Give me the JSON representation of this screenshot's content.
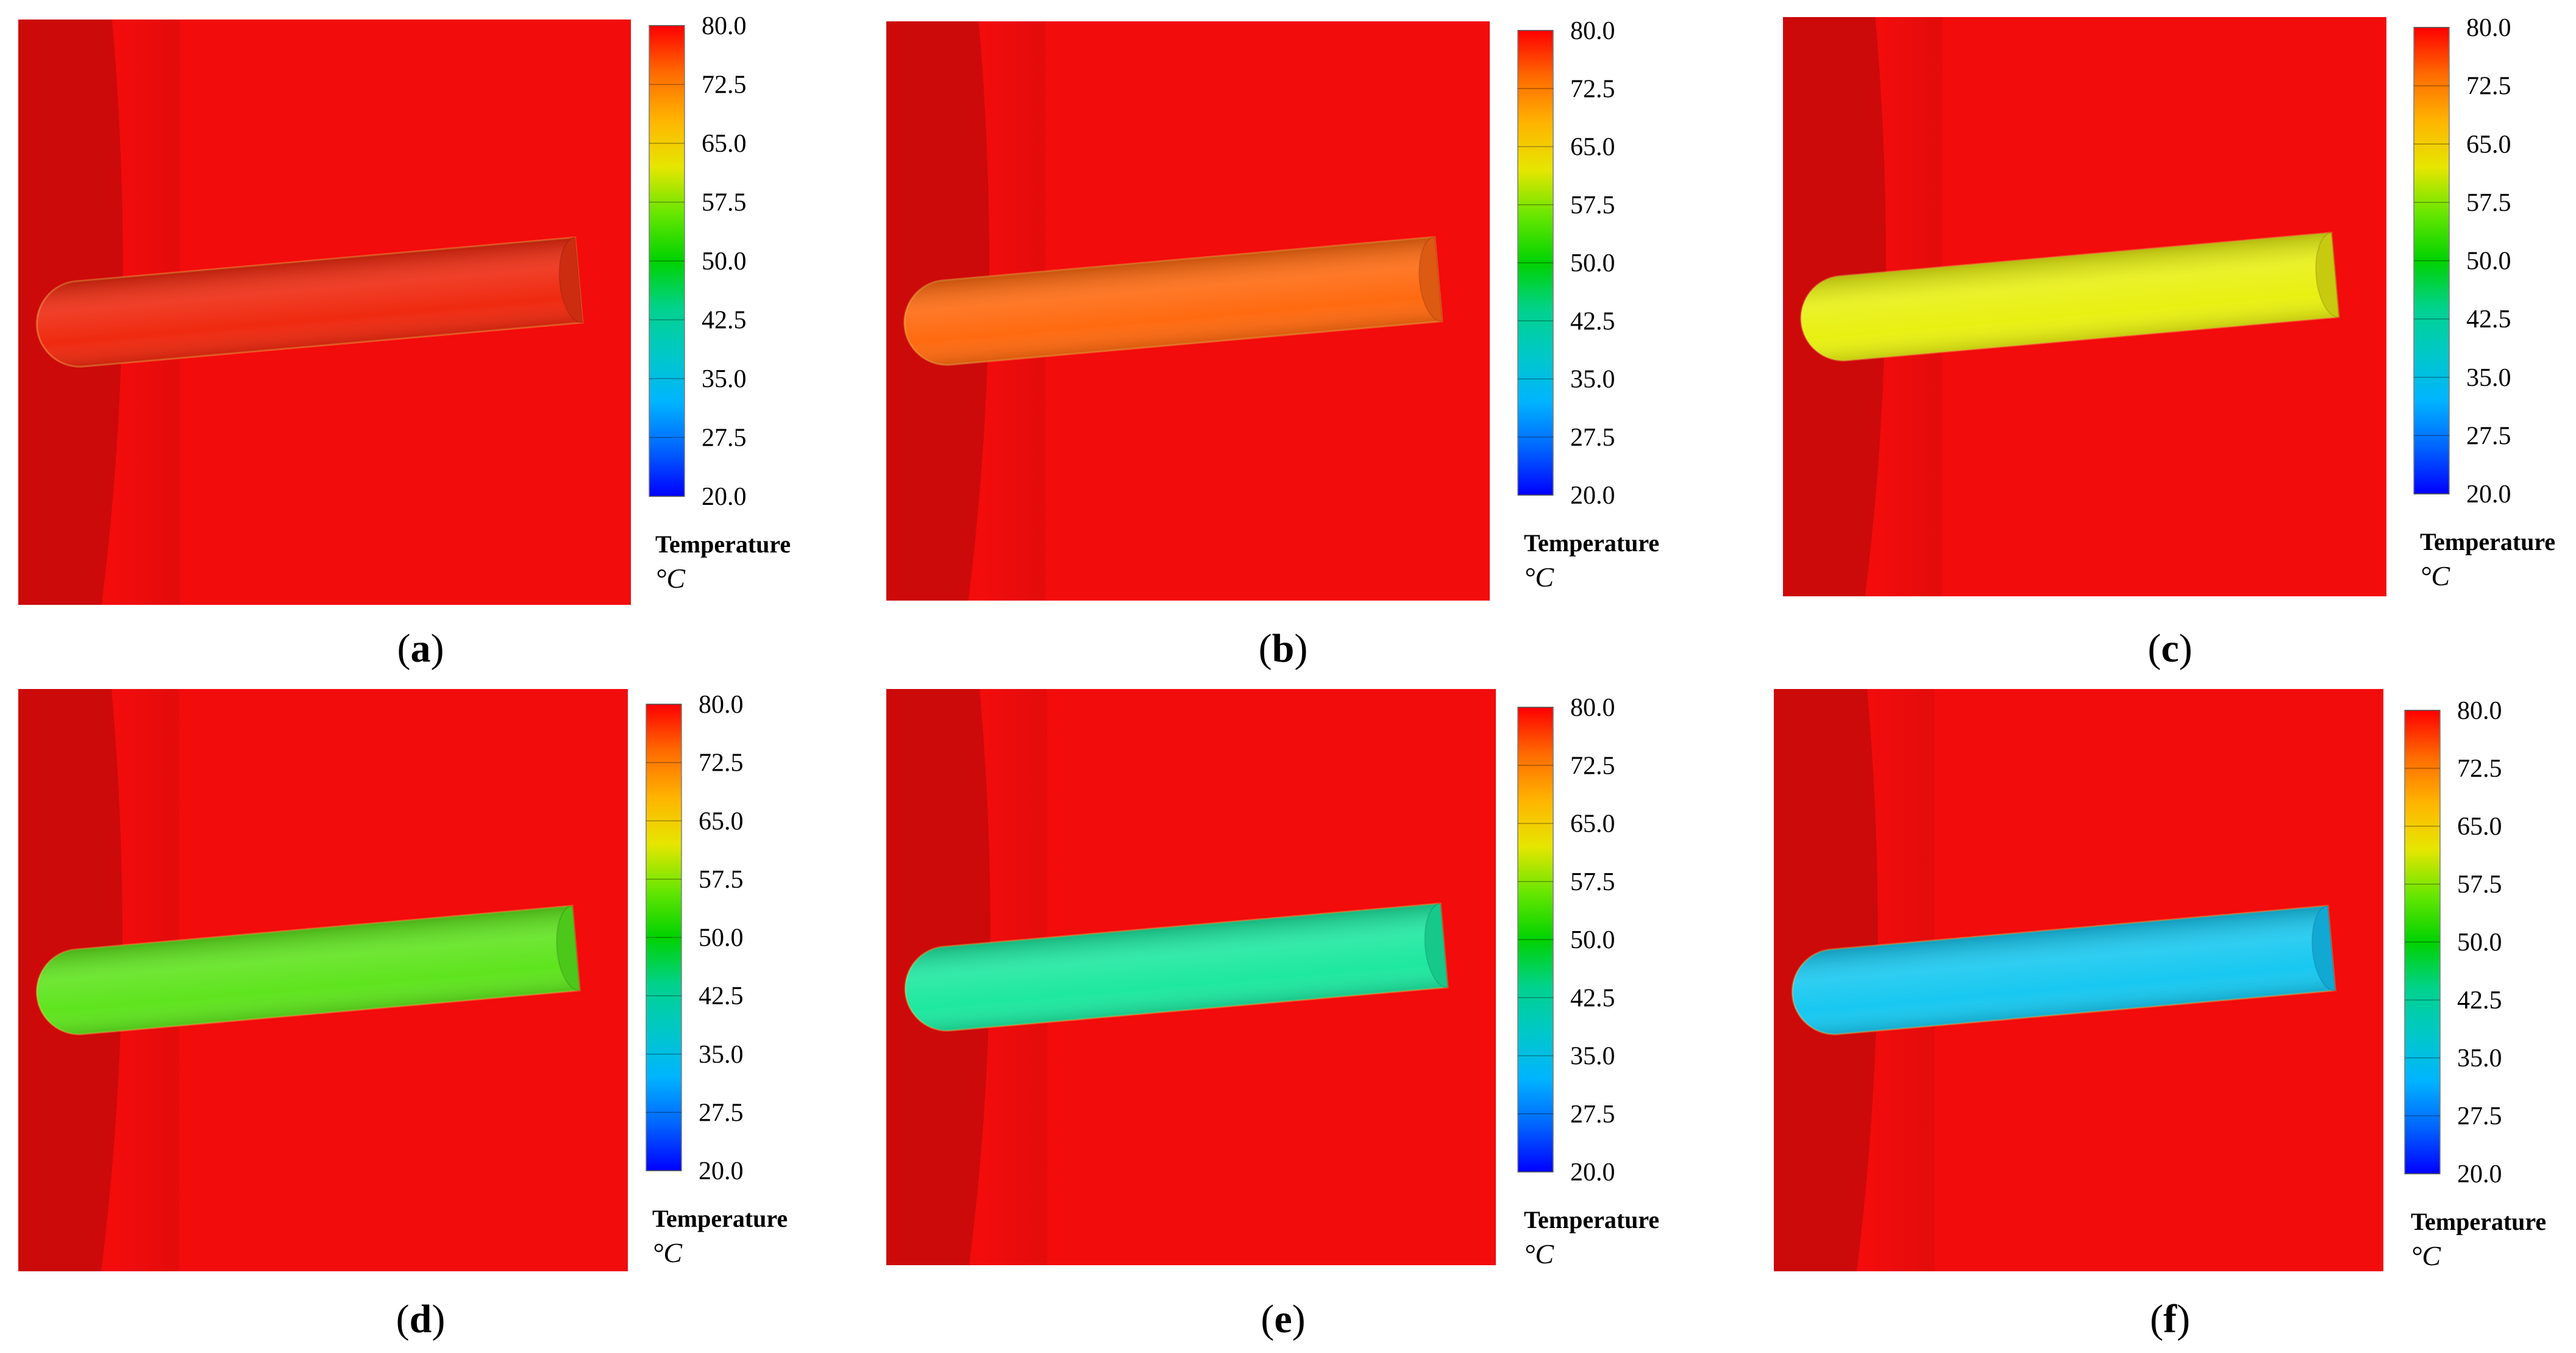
{
  "colorbar": {
    "ticks": [
      "80.0",
      "72.5",
      "65.0",
      "57.5",
      "50.0",
      "42.5",
      "35.0",
      "27.5",
      "20.0"
    ],
    "title": "Temperature",
    "unit": "°C",
    "stops": [
      "#ff0000",
      "#ff6a00",
      "#ffb400",
      "#e6e600",
      "#66e600",
      "#00d200",
      "#00d28c",
      "#00c8c8",
      "#00b4ff",
      "#0064ff",
      "#0000ff"
    ]
  },
  "colors": {
    "background": "#f20c0c",
    "dark_band": "#cc0a0a",
    "label_text": "#000000"
  },
  "panels": [
    {
      "label": "a",
      "tube_color": "#ef2a10",
      "cap_color": "#cc2d10"
    },
    {
      "label": "b",
      "tube_color": "#ff6a10",
      "cap_color": "#dd5a12"
    },
    {
      "label": "c",
      "tube_color": "#e8f012",
      "cap_color": "#c8ca10"
    },
    {
      "label": "d",
      "tube_color": "#5fe41e",
      "cap_color": "#4cc81a"
    },
    {
      "label": "e",
      "tube_color": "#1ee8a0",
      "cap_color": "#16c98a"
    },
    {
      "label": "f",
      "tube_color": "#18c8f0",
      "cap_color": "#12a8d4"
    }
  ]
}
